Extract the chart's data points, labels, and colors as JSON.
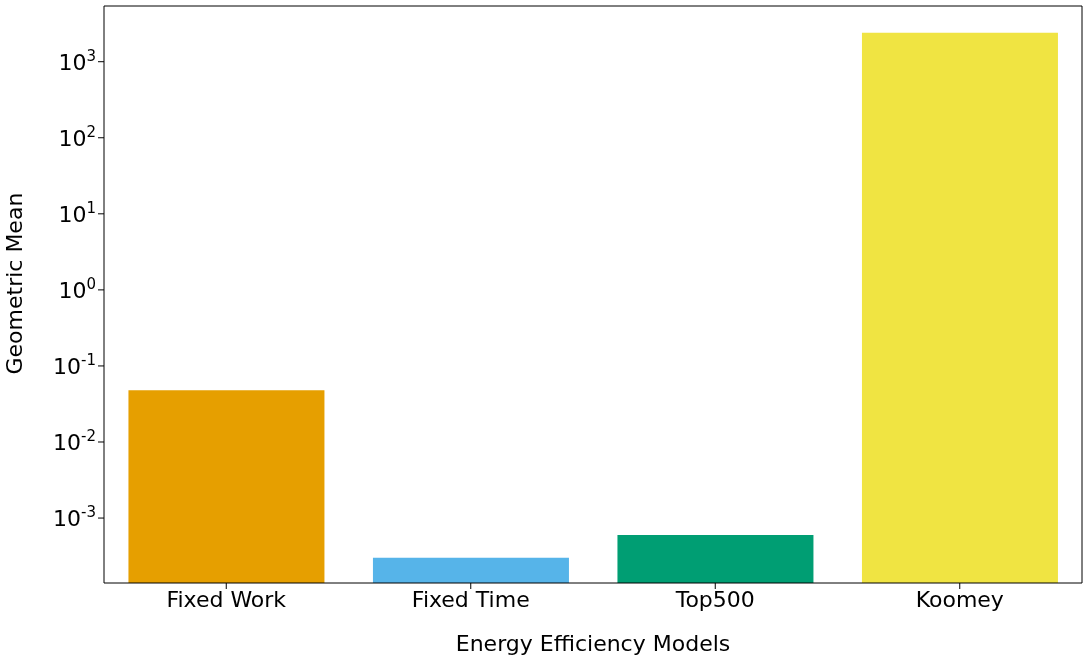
{
  "chart_data": {
    "type": "bar",
    "xlabel": "Energy Efficiency Models",
    "ylabel": "Geometric Mean",
    "categories": [
      "Fixed Work",
      "Fixed Time",
      "Top500",
      "Koomey"
    ],
    "values": [
      0.048,
      0.0003,
      0.0006,
      2400
    ],
    "colors": [
      "#e69f00",
      "#56b4e9",
      "#009e73",
      "#f0e442"
    ],
    "log": "y",
    "ylim": [
      0.00014,
      5400
    ],
    "yticks": [
      {
        "value": 0.001,
        "label": "10$^{-3}$"
      },
      {
        "value": 0.01,
        "label": "10$^{-2}$"
      },
      {
        "value": 0.1,
        "label": "10$^{-1}$"
      },
      {
        "value": 1,
        "label": "10$^{0}$"
      },
      {
        "value": 10,
        "label": "10$^{1}$"
      },
      {
        "value": 100,
        "label": "10$^{2}$"
      },
      {
        "value": 1000,
        "label": "10$^{3}$"
      }
    ],
    "grid": false,
    "legend": false
  }
}
